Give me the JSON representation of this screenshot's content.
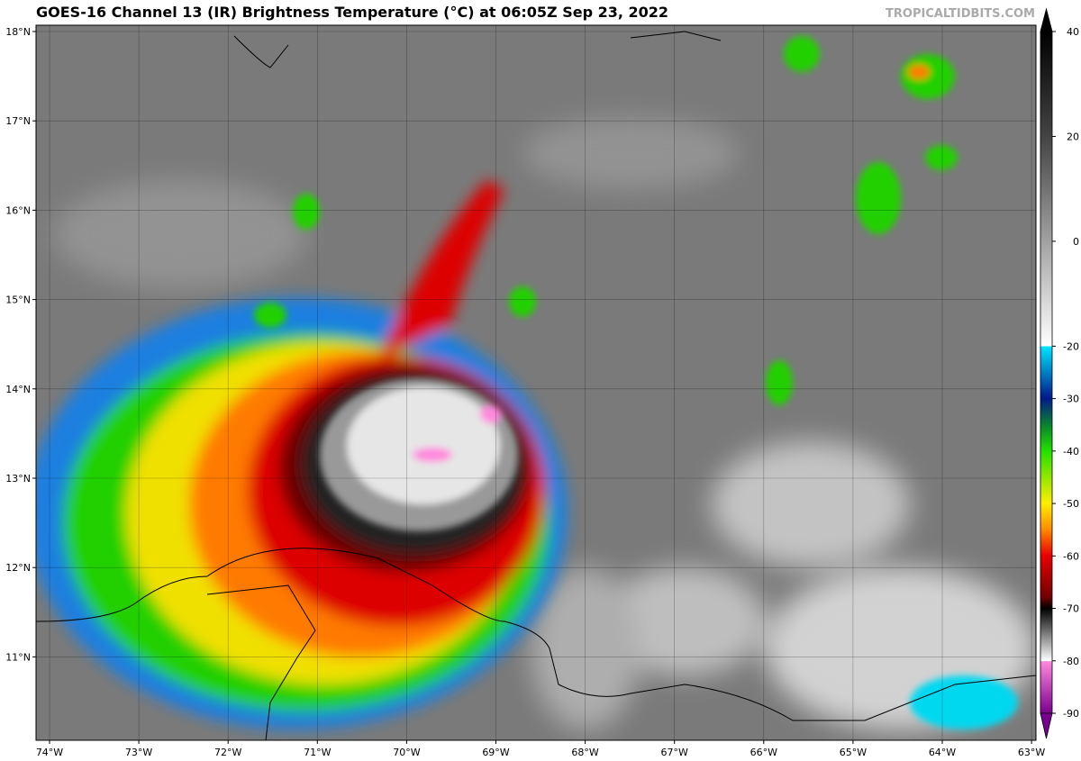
{
  "title": "GOES-16 Channel 13 (IR) Brightness Temperature (°C) at 06:05Z Sep 23, 2022",
  "watermark": "TROPICALTIDBITS.COM",
  "map": {
    "lat_ticks": [
      {
        "value": 18,
        "label": "18°N"
      },
      {
        "value": 17,
        "label": "17°N"
      },
      {
        "value": 16,
        "label": "16°N"
      },
      {
        "value": 15,
        "label": "15°N"
      },
      {
        "value": 14,
        "label": "14°N"
      },
      {
        "value": 13,
        "label": "13°N"
      },
      {
        "value": 12,
        "label": "12°N"
      },
      {
        "value": 11,
        "label": "11°N"
      }
    ],
    "lon_ticks": [
      {
        "value": -74,
        "label": "74°W"
      },
      {
        "value": -73,
        "label": "73°W"
      },
      {
        "value": -72,
        "label": "72°W"
      },
      {
        "value": -71,
        "label": "71°W"
      },
      {
        "value": -70,
        "label": "70°W"
      },
      {
        "value": -69,
        "label": "69°W"
      },
      {
        "value": -68,
        "label": "68°W"
      },
      {
        "value": -67,
        "label": "67°W"
      },
      {
        "value": -66,
        "label": "66°W"
      },
      {
        "value": -65,
        "label": "65°W"
      },
      {
        "value": -64,
        "label": "64°W"
      },
      {
        "value": -63,
        "label": "63°W"
      }
    ]
  },
  "colorbar": {
    "lim": [
      -90,
      40
    ],
    "ticks": [
      40,
      20,
      0,
      -20,
      -30,
      -40,
      -50,
      -60,
      -70,
      -80,
      -90
    ]
  }
}
